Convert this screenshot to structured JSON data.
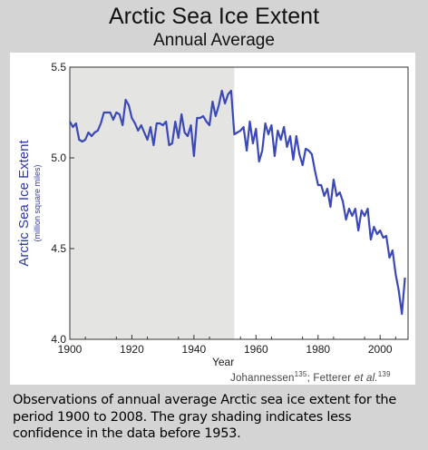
{
  "header": {
    "title": "Arctic Sea Ice Extent",
    "subtitle": "Annual Average"
  },
  "chart_data": {
    "type": "line",
    "title": "Arctic Sea Ice Extent",
    "subtitle": "Annual Average",
    "xlabel": "Year",
    "ylabel": "Arctic Sea Ice Extent",
    "ylabel_units": "(million square miles)",
    "xlim": [
      1900,
      2009
    ],
    "ylim": [
      4.0,
      5.5
    ],
    "x_ticks": [
      1900,
      1920,
      1940,
      1960,
      1980,
      2000
    ],
    "y_ticks": [
      "4.0",
      "4.5",
      "5.0",
      "5.5"
    ],
    "grid": false,
    "line_color": "#3a48b8",
    "shaded_region": {
      "x_start": 1900,
      "x_end": 1953,
      "color": "#e4e5e3"
    },
    "series": [
      {
        "x": [
          1900,
          1901,
          1902,
          1903,
          1904,
          1905,
          1906,
          1907,
          1908,
          1909,
          1910,
          1911,
          1912,
          1913,
          1914,
          1915,
          1916,
          1917,
          1918,
          1919,
          1920,
          1921,
          1922,
          1923,
          1924,
          1925,
          1926,
          1927,
          1928,
          1929,
          1930,
          1931,
          1932,
          1933,
          1934,
          1935,
          1936,
          1937,
          1938,
          1939,
          1940,
          1941,
          1942,
          1943,
          1944,
          1945,
          1946,
          1947,
          1948,
          1949,
          1950,
          1951,
          1952,
          1953,
          1954,
          1955,
          1956,
          1957,
          1958,
          1959,
          1960,
          1961,
          1962,
          1963,
          1964,
          1965,
          1966,
          1967,
          1968,
          1969,
          1970,
          1971,
          1972,
          1973,
          1974,
          1975,
          1976,
          1977,
          1978,
          1979,
          1980,
          1981,
          1982,
          1983,
          1984,
          1985,
          1986,
          1987,
          1988,
          1989,
          1990,
          1991,
          1992,
          1993,
          1994,
          1995,
          1996,
          1997,
          1998,
          1999,
          2000,
          2001,
          2002,
          2003,
          2004,
          2005,
          2006,
          2007,
          2008
        ],
        "values": [
          5.2,
          5.17,
          5.19,
          5.1,
          5.09,
          5.1,
          5.14,
          5.12,
          5.14,
          5.15,
          5.19,
          5.25,
          5.25,
          5.25,
          5.21,
          5.25,
          5.24,
          5.18,
          5.32,
          5.29,
          5.22,
          5.19,
          5.15,
          5.18,
          5.14,
          5.1,
          5.17,
          5.07,
          5.19,
          5.19,
          5.18,
          5.2,
          5.07,
          5.08,
          5.2,
          5.11,
          5.24,
          5.14,
          5.12,
          5.18,
          5.01,
          5.22,
          5.22,
          5.23,
          5.2,
          5.18,
          5.31,
          5.23,
          5.29,
          5.37,
          5.3,
          5.35,
          5.37,
          5.13,
          5.14,
          5.15,
          5.17,
          5.04,
          5.2,
          5.08,
          5.16,
          4.98,
          5.04,
          5.19,
          5.13,
          5.18,
          5.01,
          5.15,
          5.1,
          5.17,
          5.06,
          5.12,
          4.99,
          5.12,
          5.02,
          4.96,
          5.05,
          5.04,
          5.02,
          4.93,
          4.85,
          4.85,
          4.79,
          4.83,
          4.73,
          4.88,
          4.79,
          4.81,
          4.76,
          4.66,
          4.72,
          4.68,
          4.72,
          4.6,
          4.71,
          4.68,
          4.72,
          4.55,
          4.62,
          4.58,
          4.6,
          4.56,
          4.57,
          4.45,
          4.49,
          4.36,
          4.27,
          4.14,
          4.34
        ]
      }
    ]
  },
  "attribution": {
    "author1": "Johannessen",
    "ref1": "135",
    "separator": "; ",
    "author2": "Fetterer ",
    "etal": "et al.",
    "ref2": "139"
  },
  "caption": "Observations of annual average Arctic sea ice extent for the period 1900 to 2008. The gray shading indicates less confidence in the data before 1953."
}
